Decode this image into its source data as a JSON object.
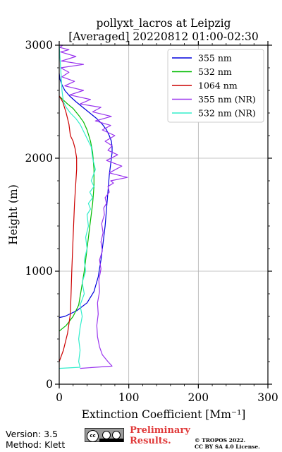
{
  "chart_data": {
    "type": "line",
    "title": "pollyxt_lacros at Leipzig",
    "subtitle": "[Averaged] 20220812 01:00-02:30",
    "xlabel": "Extinction Coefficient [Mm⁻¹]",
    "ylabel": "Height (m)",
    "xlim": [
      0,
      300
    ],
    "ylim": [
      0,
      3000
    ],
    "xticks": [
      "0",
      "100",
      "200",
      "300"
    ],
    "yticks": [
      "0",
      "1000",
      "2000",
      "3000"
    ],
    "grid": true,
    "legend_position": "top-right",
    "series": [
      {
        "name": "355 nm",
        "color": "#0000dd",
        "x": [
          0,
          8,
          25,
          40,
          50,
          56,
          60,
          63,
          66,
          68,
          70,
          72,
          74,
          75,
          76,
          76,
          75,
          72,
          68,
          62,
          54,
          44,
          34,
          24,
          15,
          8,
          4,
          1,
          0
        ],
        "y": [
          590,
          600,
          650,
          720,
          820,
          950,
          1100,
          1250,
          1400,
          1550,
          1700,
          1850,
          1950,
          2000,
          2050,
          2100,
          2150,
          2200,
          2250,
          2300,
          2350,
          2400,
          2450,
          2500,
          2550,
          2600,
          2650,
          2700,
          2750
        ]
      },
      {
        "name": "532 nm",
        "color": "#00bb00",
        "x": [
          0,
          10,
          20,
          28,
          32,
          36,
          40,
          44,
          48,
          50,
          50,
          48,
          45,
          40,
          35,
          28,
          20,
          12,
          5,
          0
        ],
        "y": [
          470,
          520,
          600,
          700,
          850,
          1000,
          1200,
          1400,
          1600,
          1750,
          1900,
          2050,
          2150,
          2250,
          2320,
          2380,
          2440,
          2480,
          2520,
          2550
        ]
      },
      {
        "name": "1064 nm",
        "color": "#cc0000",
        "x": [
          0,
          6,
          12,
          16,
          17,
          18,
          20,
          22,
          24,
          25,
          25,
          23,
          20,
          16,
          14,
          10,
          5,
          0
        ],
        "y": [
          200,
          300,
          450,
          620,
          800,
          1000,
          1300,
          1600,
          1800,
          1900,
          2000,
          2080,
          2150,
          2200,
          2300,
          2400,
          2500,
          2550
        ]
      },
      {
        "name": "355 nm (NR)",
        "color": "#9933ee",
        "x": [
          30,
          76,
          70,
          62,
          58,
          55,
          54,
          56,
          55,
          58,
          57,
          60,
          58,
          62,
          60,
          63,
          61,
          65,
          64,
          68,
          66,
          72,
          70,
          78,
          74,
          98,
          72,
          90,
          68,
          84,
          70,
          76,
          66,
          80,
          62,
          74,
          52,
          75,
          48,
          60,
          30,
          45,
          15,
          35,
          8,
          22,
          4,
          14,
          2,
          35,
          3,
          24,
          2,
          14,
          1,
          5,
          0
        ],
        "y": [
          140,
          160,
          200,
          260,
          330,
          420,
          520,
          620,
          720,
          820,
          920,
          1020,
          1100,
          1180,
          1260,
          1340,
          1420,
          1500,
          1560,
          1600,
          1650,
          1700,
          1750,
          1780,
          1800,
          1830,
          1870,
          1930,
          1980,
          2030,
          2070,
          2110,
          2150,
          2200,
          2250,
          2290,
          2330,
          2370,
          2410,
          2450,
          2480,
          2520,
          2560,
          2600,
          2640,
          2680,
          2720,
          2760,
          2800,
          2830,
          2860,
          2900,
          2940,
          2960,
          2980,
          3000,
          3000
        ]
      },
      {
        "name": "532 nm (NR)",
        "color": "#33eecc",
        "x": [
          0,
          30,
          28,
          30,
          28,
          30,
          33,
          30,
          36,
          33,
          38,
          36,
          40,
          38,
          42,
          40,
          45,
          42,
          48,
          44,
          50,
          46,
          52,
          48,
          46,
          42,
          38,
          30,
          24,
          16,
          10,
          6,
          4,
          3,
          2,
          1,
          0
        ],
        "y": [
          140,
          150,
          200,
          300,
          400,
          500,
          600,
          700,
          800,
          900,
          1000,
          1100,
          1200,
          1300,
          1400,
          1500,
          1550,
          1600,
          1650,
          1700,
          1750,
          1800,
          1900,
          2000,
          2100,
          2150,
          2200,
          2300,
          2350,
          2400,
          2450,
          2500,
          2600,
          2700,
          2800,
          2900,
          3000
        ]
      }
    ]
  },
  "footer": {
    "version": "Version: 3.5",
    "method": "Method: Klett",
    "preliminary_line1": "Preliminary",
    "preliminary_line2": "Results.",
    "copyright_line1": "© TROPOS 2022.",
    "copyright_line2": "CC BY SA 4.0 License.",
    "license_badge": "cc by sa"
  }
}
